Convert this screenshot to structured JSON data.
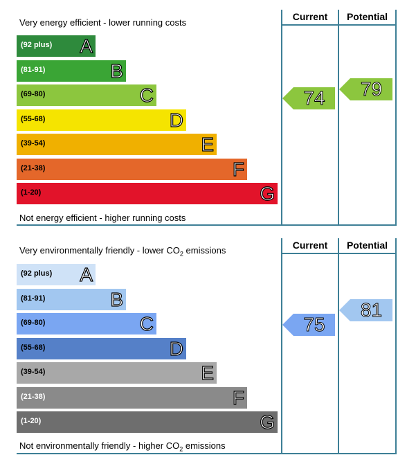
{
  "energy": {
    "header_current": "Current",
    "header_potential": "Potential",
    "top_caption": "Very energy efficient - lower running costs",
    "bottom_caption": "Not energy efficient - higher running costs",
    "bands": [
      {
        "range": "(92 plus)",
        "letter": "A",
        "color": "#2e8a3c",
        "text_color": "#ffffff"
      },
      {
        "range": "(81-91)",
        "letter": "B",
        "color": "#3aa535",
        "text_color": "#ffffff"
      },
      {
        "range": "(69-80)",
        "letter": "C",
        "color": "#8cc63e",
        "text_color": "#000000"
      },
      {
        "range": "(55-68)",
        "letter": "D",
        "color": "#f5e400",
        "text_color": "#000000"
      },
      {
        "range": "(39-54)",
        "letter": "E",
        "color": "#f0b000",
        "text_color": "#000000"
      },
      {
        "range": "(21-38)",
        "letter": "F",
        "color": "#e4672a",
        "text_color": "#000000"
      },
      {
        "range": "(1-20)",
        "letter": "G",
        "color": "#e2132a",
        "text_color": "#000000"
      }
    ],
    "current": {
      "value": "74",
      "band": "C",
      "color": "#8cc63e"
    },
    "potential": {
      "value": "79",
      "band": "C",
      "color": "#8cc63e"
    }
  },
  "environmental": {
    "header_current": "Current",
    "header_potential": "Potential",
    "top_caption_pre": "Very environmentally friendly - lower CO",
    "top_caption_sub": "2",
    "top_caption_post": " emissions",
    "bottom_caption_pre": "Not environmentally friendly - higher CO",
    "bottom_caption_sub": "2",
    "bottom_caption_post": " emissions",
    "bands": [
      {
        "range": "(92 plus)",
        "letter": "A",
        "color": "#cfe2f7",
        "text_color": "#000000"
      },
      {
        "range": "(81-91)",
        "letter": "B",
        "color": "#a2c7f0",
        "text_color": "#000000"
      },
      {
        "range": "(69-80)",
        "letter": "C",
        "color": "#7aa6f2",
        "text_color": "#000000"
      },
      {
        "range": "(55-68)",
        "letter": "D",
        "color": "#5580c8",
        "text_color": "#000000"
      },
      {
        "range": "(39-54)",
        "letter": "E",
        "color": "#a8a8a8",
        "text_color": "#000000"
      },
      {
        "range": "(21-38)",
        "letter": "F",
        "color": "#8a8a8a",
        "text_color": "#ffffff"
      },
      {
        "range": "(1-20)",
        "letter": "G",
        "color": "#6e6e6e",
        "text_color": "#ffffff"
      }
    ],
    "current": {
      "value": "75",
      "band": "C",
      "color": "#7aa6f2"
    },
    "potential": {
      "value": "81",
      "band": "B",
      "color": "#a2c7f0"
    }
  }
}
